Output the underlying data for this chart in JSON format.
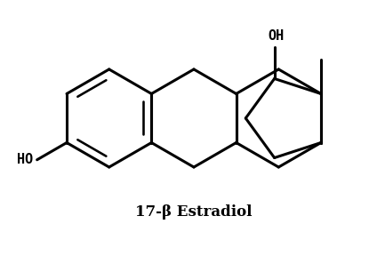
{
  "title": "17-β Estradiol",
  "title_fontsize": 12,
  "bg_color": "#ffffff",
  "line_color": "#000000",
  "line_width": 2.2,
  "ho_label": "HO",
  "oh_label": "OH"
}
